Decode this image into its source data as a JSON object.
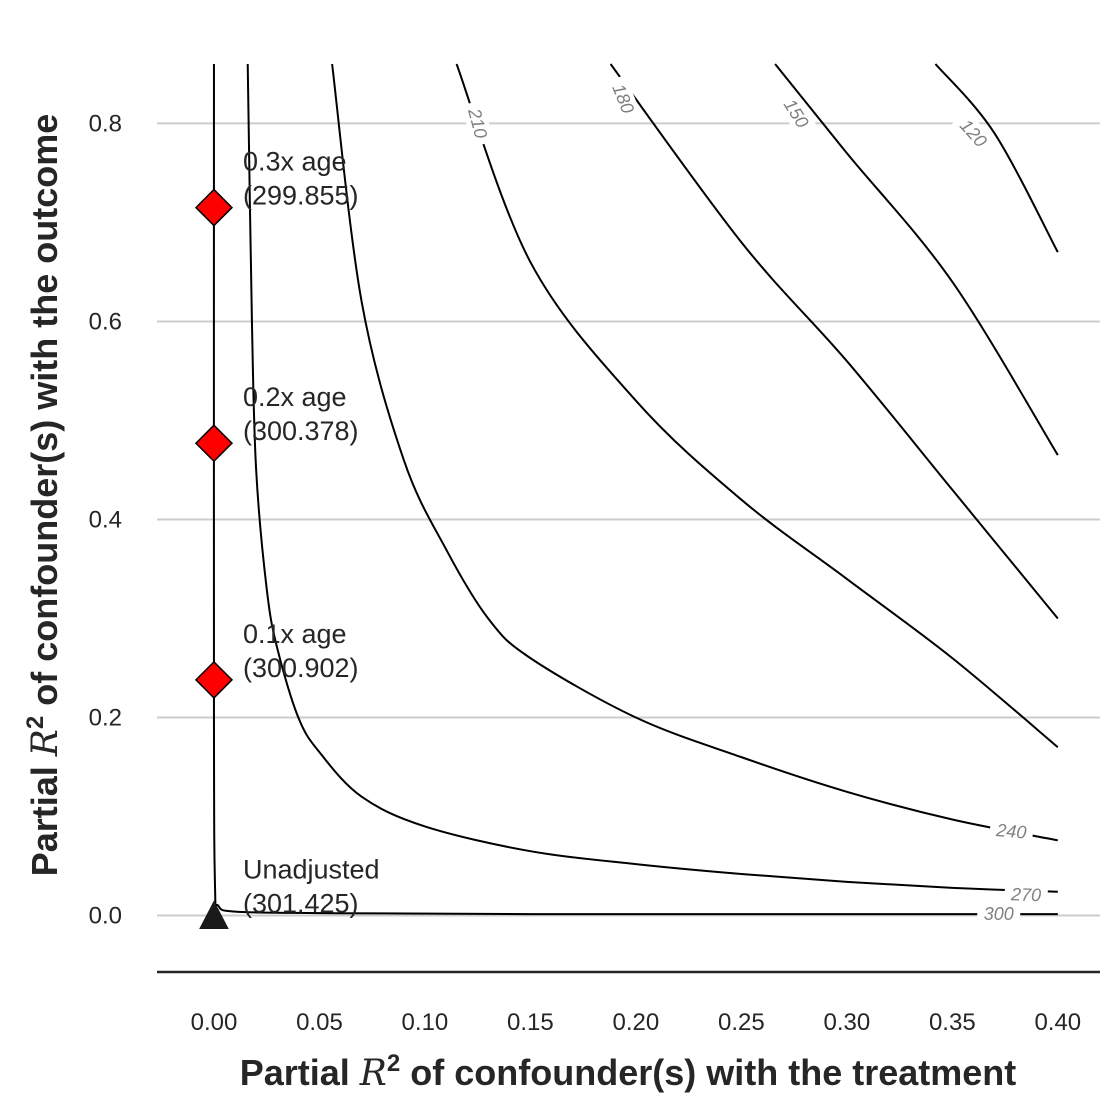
{
  "chart_data": {
    "type": "contour",
    "xlabel_prefix": "Partial ",
    "xlabel_var": "R",
    "xlabel_sup": "2",
    "xlabel_suffix": " of confounder(s) with the treatment",
    "ylabel_prefix": "Partial ",
    "ylabel_var": "R",
    "ylabel_sup": "2",
    "ylabel_suffix": " of confounder(s) with the outcome",
    "xlim": [
      -0.027,
      0.42
    ],
    "ylim": [
      -0.057,
      0.86
    ],
    "x_ticks": [
      0.0,
      0.05,
      0.1,
      0.15,
      0.2,
      0.25,
      0.3,
      0.35,
      0.4
    ],
    "x_tick_labels": [
      "0.00",
      "0.05",
      "0.10",
      "0.15",
      "0.20",
      "0.25",
      "0.30",
      "0.35",
      "0.40"
    ],
    "y_ticks": [
      0.0,
      0.2,
      0.4,
      0.6,
      0.8
    ],
    "y_tick_labels": [
      "0.0",
      "0.2",
      "0.4",
      "0.6",
      "0.8"
    ],
    "grid": "horizontal",
    "contours": [
      {
        "level": 300,
        "label": "300",
        "points": [
          [
            0.0,
            0.86
          ],
          [
            0.0,
            0.2
          ],
          [
            0.0005,
            0.03
          ],
          [
            0.002,
            0.01
          ],
          [
            0.01,
            0.004
          ],
          [
            0.05,
            0.0025
          ],
          [
            0.15,
            0.0015
          ],
          [
            0.4,
            0.0015
          ]
        ]
      },
      {
        "level": 270,
        "label": "270",
        "points": [
          [
            0.016,
            0.86
          ],
          [
            0.018,
            0.6
          ],
          [
            0.02,
            0.45
          ],
          [
            0.025,
            0.33
          ],
          [
            0.03,
            0.27
          ],
          [
            0.04,
            0.2
          ],
          [
            0.05,
            0.165
          ],
          [
            0.07,
            0.12
          ],
          [
            0.1,
            0.09
          ],
          [
            0.15,
            0.065
          ],
          [
            0.2,
            0.052
          ],
          [
            0.25,
            0.042
          ],
          [
            0.3,
            0.034
          ],
          [
            0.35,
            0.028
          ],
          [
            0.4,
            0.024
          ]
        ]
      },
      {
        "level": 240,
        "label": "240",
        "points": [
          [
            0.056,
            0.86
          ],
          [
            0.07,
            0.62
          ],
          [
            0.09,
            0.46
          ],
          [
            0.11,
            0.37
          ],
          [
            0.13,
            0.3
          ],
          [
            0.15,
            0.26
          ],
          [
            0.2,
            0.2
          ],
          [
            0.25,
            0.16
          ],
          [
            0.3,
            0.125
          ],
          [
            0.35,
            0.097
          ],
          [
            0.4,
            0.076
          ]
        ]
      },
      {
        "level": 210,
        "label": "210",
        "points": [
          [
            0.115,
            0.86
          ],
          [
            0.15,
            0.66
          ],
          [
            0.2,
            0.52
          ],
          [
            0.25,
            0.42
          ],
          [
            0.3,
            0.34
          ],
          [
            0.35,
            0.26
          ],
          [
            0.4,
            0.17
          ]
        ]
      },
      {
        "level": 180,
        "label": "180",
        "points": [
          [
            0.188,
            0.86
          ],
          [
            0.25,
            0.68
          ],
          [
            0.3,
            0.56
          ],
          [
            0.35,
            0.43
          ],
          [
            0.4,
            0.3
          ]
        ]
      },
      {
        "level": 150,
        "label": "150",
        "points": [
          [
            0.266,
            0.86
          ],
          [
            0.3,
            0.77
          ],
          [
            0.35,
            0.64
          ],
          [
            0.4,
            0.465
          ]
        ]
      },
      {
        "level": 120,
        "label": "120",
        "points": [
          [
            0.342,
            0.86
          ],
          [
            0.37,
            0.79
          ],
          [
            0.4,
            0.67
          ]
        ]
      }
    ],
    "contour_label_positions": [
      {
        "label": "210",
        "x": 0.125,
        "y": 0.8,
        "angle": 75
      },
      {
        "label": "180",
        "x": 0.194,
        "y": 0.825,
        "angle": 68
      },
      {
        "label": "150",
        "x": 0.276,
        "y": 0.81,
        "angle": 58
      },
      {
        "label": "120",
        "x": 0.36,
        "y": 0.79,
        "angle": 48
      },
      {
        "label": "240",
        "x": 0.378,
        "y": 0.085,
        "angle": 5
      },
      {
        "label": "270",
        "x": 0.385,
        "y": 0.021,
        "angle": 2
      },
      {
        "label": "300",
        "x": 0.372,
        "y": 0.0015,
        "angle": 0
      }
    ],
    "unadjusted_point": {
      "x": 0.0,
      "y": 0.0,
      "label_line1": "Unadjusted",
      "label_line2": "(301.425)"
    },
    "bound_points": [
      {
        "x": 0.0,
        "y": 0.238,
        "label_line1": "0.1x age",
        "label_line2": "(300.902)"
      },
      {
        "x": 0.0,
        "y": 0.477,
        "label_line1": "0.2x age",
        "label_line2": "(300.378)"
      },
      {
        "x": 0.0,
        "y": 0.715,
        "label_line1": "0.3x age",
        "label_line2": "(299.855)"
      }
    ],
    "marker_color": "#ff0000"
  }
}
